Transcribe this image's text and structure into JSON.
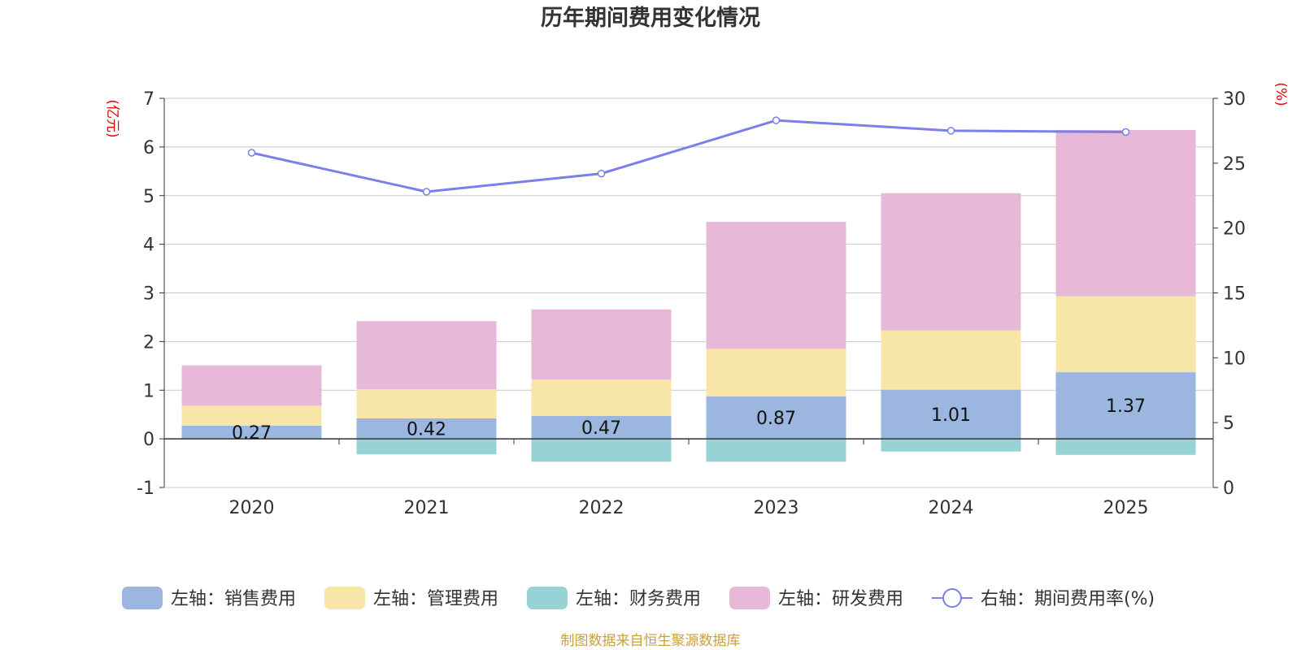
{
  "chart_data": {
    "type": "bar",
    "title": "历年期间费用变化情况",
    "categories": [
      "2020",
      "2021",
      "2022",
      "2023",
      "2024",
      "2025"
    ],
    "left_axis": {
      "label": "(亿元)",
      "ylim": [
        -1,
        7
      ],
      "ticks": [
        -1,
        0,
        1,
        2,
        3,
        4,
        5,
        6,
        7
      ]
    },
    "right_axis": {
      "label": "(%)",
      "ylim": [
        0,
        30
      ],
      "ticks": [
        0,
        5,
        10,
        15,
        20,
        25,
        30
      ]
    },
    "series": [
      {
        "name": "左轴：销售费用",
        "axis": "left",
        "kind": "bar",
        "color": "#9bb7e0",
        "values": [
          0.27,
          0.42,
          0.47,
          0.87,
          1.01,
          1.37
        ],
        "labels": [
          "0.27",
          "0.42",
          "0.47",
          "0.87",
          "1.01",
          "1.37"
        ]
      },
      {
        "name": "左轴：管理费用",
        "axis": "left",
        "kind": "bar",
        "color": "#f8e6a8",
        "values": [
          0.41,
          0.6,
          0.75,
          0.98,
          1.22,
          1.56
        ]
      },
      {
        "name": "左轴：财务费用",
        "axis": "left",
        "kind": "bar",
        "color": "#97d3d4",
        "values": [
          -0.01,
          -0.32,
          -0.47,
          -0.47,
          -0.26,
          -0.33
        ]
      },
      {
        "name": "左轴：研发费用",
        "axis": "left",
        "kind": "bar",
        "color": "#e7b8d8",
        "values": [
          0.83,
          1.4,
          1.44,
          2.61,
          2.82,
          3.42
        ]
      },
      {
        "name": "右轴：期间费用率(%)",
        "axis": "right",
        "kind": "line",
        "color": "#7b7fea",
        "values": [
          25.8,
          22.8,
          24.2,
          28.3,
          27.5,
          27.4
        ]
      }
    ]
  },
  "source_note": "制图数据来自恒生聚源数据库"
}
